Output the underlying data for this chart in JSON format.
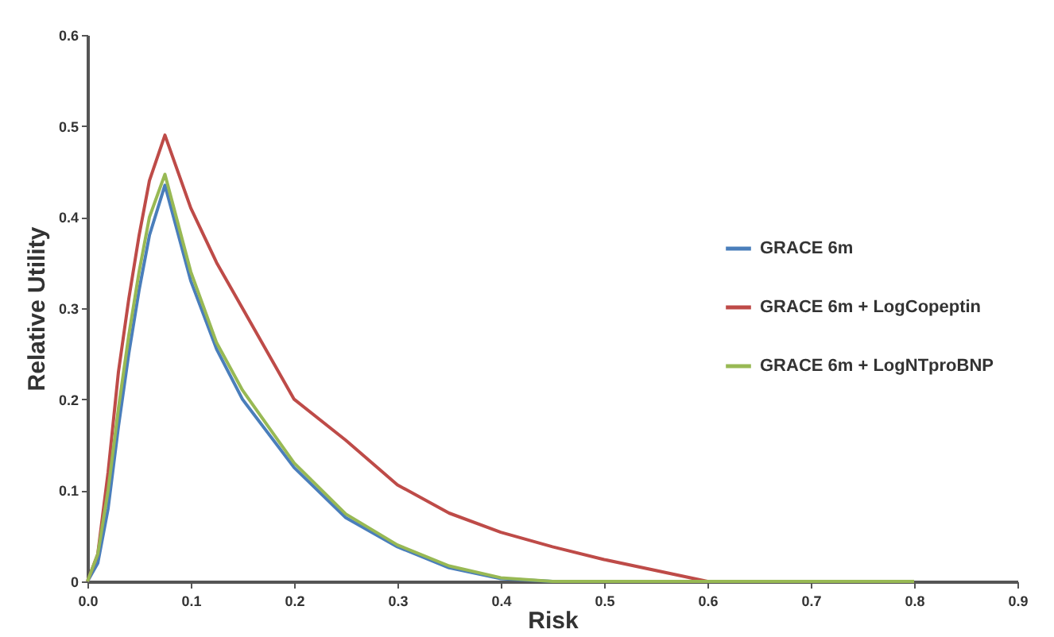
{
  "chart_data": {
    "type": "line",
    "xlabel": "Risk",
    "ylabel": "Relative Utility",
    "xlim": [
      0,
      0.9
    ],
    "ylim": [
      0,
      0.6
    ],
    "xticks": [
      {
        "value": 0,
        "label": "0.0"
      },
      0.1,
      0.2,
      0.3,
      0.4,
      0.5,
      0.6,
      0.7,
      0.8,
      0.9
    ],
    "yticks": [
      0,
      0.1,
      0.2,
      0.3,
      0.4,
      0.5,
      0.6
    ],
    "grid": false,
    "legend": "right",
    "marker": "none",
    "line_style": "solid",
    "series": [
      {
        "name": "GRACE 6m",
        "color": "#4a7ebb",
        "x": [
          0,
          0.01,
          0.02,
          0.03,
          0.04,
          0.05,
          0.06,
          0.075,
          0.1,
          0.125,
          0.15,
          0.2,
          0.25,
          0.3,
          0.35,
          0.4,
          0.45
        ],
        "values": [
          0,
          0.02,
          0.08,
          0.17,
          0.25,
          0.32,
          0.38,
          0.435,
          0.33,
          0.255,
          0.2,
          0.125,
          0.07,
          0.038,
          0.015,
          0.003,
          0
        ]
      },
      {
        "name": "GRACE 6m + LogCopeptin",
        "color": "#be4b48",
        "x": [
          0,
          0.01,
          0.02,
          0.03,
          0.04,
          0.05,
          0.06,
          0.075,
          0.1,
          0.125,
          0.15,
          0.2,
          0.25,
          0.3,
          0.35,
          0.4,
          0.45,
          0.5,
          0.6,
          0.7,
          0.8
        ],
        "values": [
          0,
          0.03,
          0.12,
          0.23,
          0.31,
          0.38,
          0.44,
          0.49,
          0.41,
          0.35,
          0.3,
          0.2,
          0.155,
          0.106,
          0.075,
          0.054,
          0.038,
          0.024,
          0,
          0,
          0
        ]
      },
      {
        "name": "GRACE 6m + LogNTproBNP",
        "color": "#98b954",
        "x": [
          0,
          0.01,
          0.02,
          0.03,
          0.04,
          0.05,
          0.06,
          0.075,
          0.1,
          0.125,
          0.15,
          0.2,
          0.25,
          0.3,
          0.35,
          0.4,
          0.45,
          0.5,
          0.6,
          0.7,
          0.8
        ],
        "values": [
          0,
          0.03,
          0.1,
          0.19,
          0.27,
          0.34,
          0.4,
          0.447,
          0.34,
          0.262,
          0.21,
          0.13,
          0.074,
          0.04,
          0.017,
          0.004,
          0,
          0,
          0,
          0,
          0
        ]
      }
    ]
  }
}
